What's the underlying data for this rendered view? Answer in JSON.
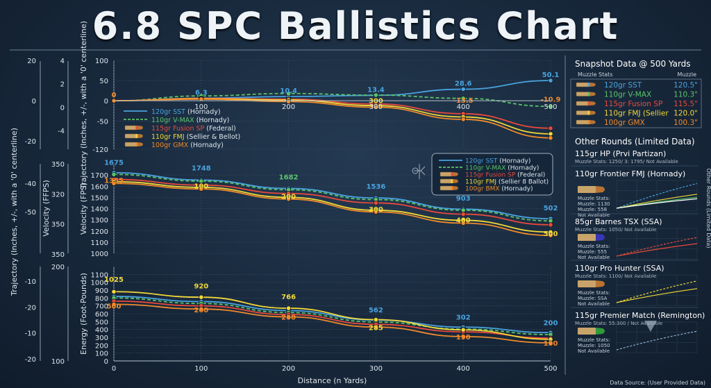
{
  "title": "6.8 SPC Ballistics Chart",
  "footer": "Data Source: (User Provided Data)",
  "colors": {
    "sst": "#4aa3df",
    "vmax": "#5cc46a",
    "fusion": "#e84a3c",
    "fmj": "#f2d93a",
    "gmx": "#f08a2a"
  },
  "chart_data": [
    {
      "type": "line",
      "id": "trajectory",
      "ylabel": "Trajectory (Inches, +/-, with a '0' centerline)",
      "x": [
        0,
        100,
        200,
        300,
        400,
        500
      ],
      "ylim": [
        -120,
        100
      ],
      "yticks": [
        100,
        50,
        0,
        -50,
        -120
      ],
      "outer_ticks_a": [
        "20",
        "0",
        "-20"
      ],
      "outer_ticks_b": [
        "4",
        "2",
        "0",
        "-4"
      ],
      "xticks": [
        "100",
        "200",
        "300",
        "400",
        "500"
      ],
      "series": [
        {
          "name": "120gr SST",
          "values": [
            0,
            6.3,
            10.4,
            13.4,
            28.6,
            50.1
          ]
        },
        {
          "name": "110gr V-MAX",
          "values": [
            0,
            12,
            18,
            14,
            6,
            -14
          ]
        },
        {
          "name": "115gr Fusion SP",
          "values": [
            0,
            6,
            4,
            -8,
            -32,
            -68
          ]
        },
        {
          "name": "110gr FMJ",
          "values": [
            0,
            5,
            2,
            -12,
            -40,
            -82
          ]
        },
        {
          "name": "100gr GMX",
          "values": [
            0,
            4,
            -2,
            -16,
            -46,
            -92
          ]
        }
      ],
      "labels": [
        {
          "text": "0",
          "x": 0,
          "y": 0,
          "color": "gmx"
        },
        {
          "text": "6.3",
          "x": 100,
          "y": 6.3,
          "color": "sst"
        },
        {
          "text": "10.4",
          "x": 200,
          "y": 10.4,
          "color": "sst"
        },
        {
          "text": "13.4",
          "x": 300,
          "y": 13.4,
          "color": "sst"
        },
        {
          "text": "28.6",
          "x": 400,
          "y": 28.6,
          "color": "sst"
        },
        {
          "text": "50.1",
          "x": 500,
          "y": 50.1,
          "color": "sst"
        },
        {
          "text": "300",
          "x": 300,
          "y": -14,
          "color": "fmj"
        },
        {
          "text": "-13.5",
          "x": 400,
          "y": -13.5,
          "color": "gmx"
        },
        {
          "text": "-10.9",
          "x": 500,
          "y": -10.9,
          "color": "gmx"
        }
      ]
    },
    {
      "type": "line",
      "id": "velocity",
      "ylabel": "Velocity (FPS)",
      "outer_label": "Velocity (FFPS)",
      "x": [
        0,
        100,
        200,
        300,
        400,
        500
      ],
      "ylim": [
        1000,
        1800
      ],
      "yticks": [
        1700,
        1600,
        1500,
        1400,
        1300,
        1200,
        1100,
        1000
      ],
      "outer_ticks_b": [
        "350",
        "320",
        "350",
        "350"
      ],
      "outer_ticks_a": [
        "-40",
        "-50"
      ],
      "series": [
        {
          "name": "120gr SST",
          "values": [
            1720,
            1655,
            1580,
            1495,
            1395,
            1310
          ]
        },
        {
          "name": "110gr V-MAX",
          "values": [
            1705,
            1645,
            1568,
            1480,
            1385,
            1290
          ]
        },
        {
          "name": "115gr Fusion SP",
          "values": [
            1660,
            1610,
            1535,
            1450,
            1350,
            1255
          ]
        },
        {
          "name": "110gr FMJ",
          "values": [
            1640,
            1590,
            1500,
            1385,
            1295,
            1190
          ]
        },
        {
          "name": "100gr GMX",
          "values": [
            1625,
            1575,
            1485,
            1370,
            1270,
            1160
          ]
        }
      ],
      "labels": [
        {
          "text": "1675",
          "x": 0,
          "y": 1760,
          "color": "sst"
        },
        {
          "text": "1355",
          "x": 0,
          "y": 1600,
          "color": "gmx"
        },
        {
          "text": "1748",
          "x": 100,
          "y": 1710,
          "color": "sst"
        },
        {
          "text": "100",
          "x": 100,
          "y": 1550,
          "color": "fmj"
        },
        {
          "text": "1682",
          "x": 200,
          "y": 1630,
          "color": "vmax"
        },
        {
          "text": "200",
          "x": 200,
          "y": 1455,
          "color": "fmj"
        },
        {
          "text": "1536",
          "x": 300,
          "y": 1545,
          "color": "sst"
        },
        {
          "text": "300",
          "x": 300,
          "y": 1340,
          "color": "fmj"
        },
        {
          "text": "903",
          "x": 400,
          "y": 1440,
          "color": "sst"
        },
        {
          "text": "400",
          "x": 400,
          "y": 1245,
          "color": "fmj"
        },
        {
          "text": "502",
          "x": 500,
          "y": 1355,
          "color": "sst"
        },
        {
          "text": "500",
          "x": 500,
          "y": 1125,
          "color": "fmj"
        }
      ]
    },
    {
      "type": "line",
      "id": "energy",
      "ylabel": "Energy (Foot-Pounds)",
      "xlabel": "Distance (n Yards)",
      "x": [
        0,
        100,
        200,
        300,
        400,
        500
      ],
      "ylim": [
        0,
        1200
      ],
      "yticks": [
        0,
        100,
        200,
        300,
        400,
        500,
        600,
        700,
        800,
        900,
        1000,
        1100
      ],
      "xticks": [
        "0",
        "100",
        "200",
        "300",
        "400",
        "500"
      ],
      "outer_ticks_b": [
        "200",
        "100"
      ],
      "outer_ticks_a": [
        "-10",
        "-20",
        "-10",
        "-20"
      ],
      "series": [
        {
          "name": "120gr SST",
          "values": [
            820,
            755,
            640,
            520,
            430,
            360
          ]
        },
        {
          "name": "110gr V-MAX",
          "values": [
            800,
            730,
            615,
            495,
            405,
            335
          ]
        },
        {
          "name": "115gr Fusion SP",
          "values": [
            760,
            700,
            590,
            465,
            370,
            290
          ]
        },
        {
          "name": "110gr FMJ",
          "values": [
            880,
            810,
            670,
            525,
            395,
            275
          ]
        },
        {
          "name": "100gr GMX",
          "values": [
            720,
            660,
            560,
            430,
            310,
            230
          ]
        }
      ],
      "labels": [
        {
          "text": "1025",
          "x": 0,
          "y": 960,
          "color": "fmj"
        },
        {
          "text": "500",
          "x": 0,
          "y": 620,
          "color": "gmx"
        },
        {
          "text": "920",
          "x": 100,
          "y": 880,
          "color": "fmj"
        },
        {
          "text": "200",
          "x": 100,
          "y": 575,
          "color": "gmx"
        },
        {
          "text": "766",
          "x": 200,
          "y": 740,
          "color": "fmj"
        },
        {
          "text": "200",
          "x": 200,
          "y": 480,
          "color": "gmx"
        },
        {
          "text": "562",
          "x": 300,
          "y": 575,
          "color": "sst"
        },
        {
          "text": "285",
          "x": 300,
          "y": 350,
          "color": "fmj"
        },
        {
          "text": "302",
          "x": 400,
          "y": 480,
          "color": "sst"
        },
        {
          "text": "190",
          "x": 400,
          "y": 230,
          "color": "gmx"
        },
        {
          "text": "200",
          "x": 500,
          "y": 410,
          "color": "sst"
        },
        {
          "text": "100",
          "x": 500,
          "y": 150,
          "color": "gmx"
        }
      ]
    }
  ],
  "legend_traj": [
    {
      "label": "120gr SST",
      "maker": "(Hornady)",
      "color": "sst",
      "dash": false
    },
    {
      "label": "110gr V-MAX",
      "maker": "(Hornady)",
      "color": "vmax",
      "dash": true
    },
    {
      "label": "115gr Fusion SP",
      "maker": "(Federal)",
      "color": "fusion",
      "dash": false
    },
    {
      "label": "110gr FMJ",
      "maker": "(Sellier & Bellot)",
      "color": "fmj",
      "dash": false
    },
    {
      "label": "100gr GMX",
      "maker": "(Hornady)",
      "color": "gmx",
      "dash": false
    }
  ],
  "legend_vel": [
    {
      "label": "120gr SST",
      "maker": "(Hornady)",
      "color": "sst",
      "dash": false
    },
    {
      "label": "110gr V-MAX",
      "maker": "(Hornady)",
      "color": "vmax",
      "dash": true
    },
    {
      "label": "115gr Fusion SP",
      "maker": "(Federal)",
      "color": "fusion",
      "dash": false
    },
    {
      "label": "110gr FMJ",
      "maker": "(Sellier 8 Ballot)",
      "color": "fmj",
      "dash": false
    },
    {
      "label": "100gr BMX",
      "maker": "(Hornady)",
      "color": "gmx",
      "dash": false
    }
  ],
  "snapshot": {
    "title": "Snapshot Data @ 500 Yards",
    "col1": "Muzzle Stats",
    "col2": "Muzzle",
    "rows": [
      {
        "name": "120gr SST",
        "value": "120.5\"",
        "color": "sst"
      },
      {
        "name": "110gr V-MAX",
        "value": "110.3\"",
        "color": "vmax"
      },
      {
        "name": "115gr Fusion SP",
        "value": "115.5\"",
        "color": "fusion"
      },
      {
        "name": "110gr FMJ (Sellier",
        "value": "120.0\"",
        "color": "fmj"
      },
      {
        "name": "100gr GMX",
        "value": "100.3\"",
        "color": "gmx"
      }
    ]
  },
  "other": {
    "title": "Other Rounds (Limited Data)",
    "side_label": "Other Rounds (Limited Data)",
    "rounds": [
      {
        "name": "115gr HP (Prvi Partizan)",
        "stats": "Muzzle Stats: 1250/ 3: 1795/ Not Available",
        "lines": []
      },
      {
        "name": "110gr Frontier FMJ (Hornady)",
        "stats": "",
        "lines": [
          "Muzzle Stats:",
          "Muzzle: 1130",
          "Muzzle: 558",
          "Not Available"
        ]
      },
      {
        "name": "85gr Barnes TSX (SSA)",
        "stats": "Muzzle Stats: 1050/ Not Available",
        "lines": [
          "Muzzle Stats:",
          "Muzzle: 555",
          "Not Available"
        ]
      },
      {
        "name": "110gr Pro Hunter (SSA)",
        "stats": "Muzzle Stats: 1100/ Not Available",
        "lines": [
          "Muzzle Stats:",
          "Muzzle: SSA",
          "Not Available"
        ]
      },
      {
        "name": "115gr Premier Match (Remington)",
        "stats": "Muzzle Stats: 55:300 / Not Available",
        "lines": [
          "Muzzle Stats:",
          "Muzzle: 1050",
          "Not Available"
        ]
      }
    ]
  }
}
